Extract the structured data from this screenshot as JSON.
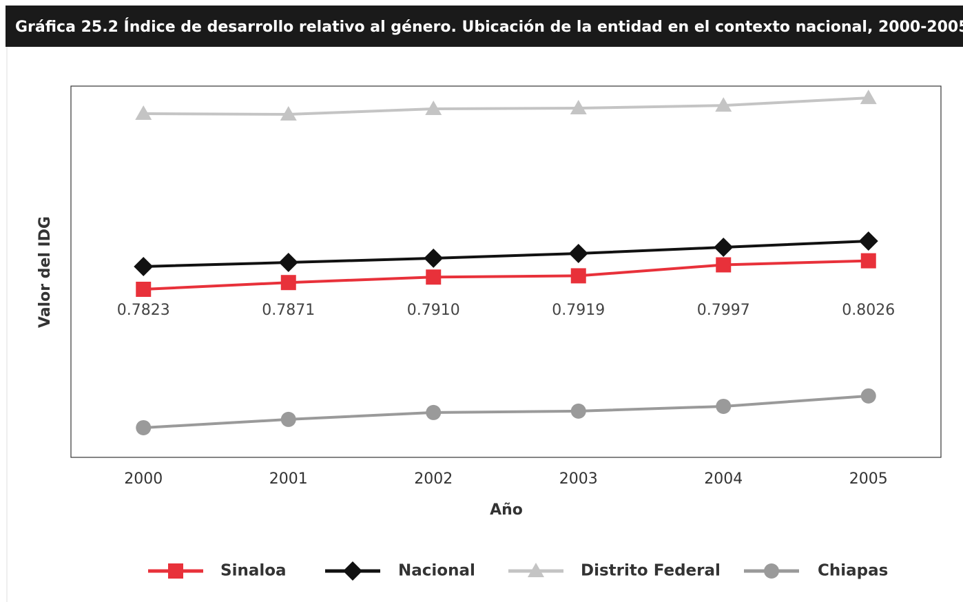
{
  "chart_data": {
    "type": "line",
    "title": "Gráfica 25.2  Índice de desarrollo relativo al género. Ubicación de la entidad en el contexto nacional, 2000-2005",
    "x_label": "Año",
    "y_label": "Valor del IDG",
    "categories": [
      "2000",
      "2001",
      "2002",
      "2003",
      "2004",
      "2005"
    ],
    "ylim": [
      0.6627,
      0.9269
    ],
    "series": [
      {
        "name": "Sinaloa",
        "color": "#e8313a",
        "marker": "square",
        "values": [
          0.7823,
          0.7871,
          0.791,
          0.7919,
          0.7997,
          0.8026
        ],
        "value_labels": [
          "0.7823",
          "0.7871",
          "0.7910",
          "0.7919",
          "0.7997",
          "0.8026"
        ]
      },
      {
        "name": "Nacional",
        "color": "#111111",
        "marker": "diamond",
        "values": [
          0.7985,
          0.8014,
          0.8044,
          0.8078,
          0.8122,
          0.8166
        ]
      },
      {
        "name": "Distrito Federal",
        "color": "#c4c4c4",
        "marker": "triangle",
        "values": [
          0.9073,
          0.9068,
          0.9107,
          0.9112,
          0.9131,
          0.9185
        ]
      },
      {
        "name": "Chiapas",
        "color": "#9a9a9a",
        "marker": "circle",
        "values": [
          0.6838,
          0.6897,
          0.6946,
          0.6956,
          0.699,
          0.7064
        ]
      }
    ]
  }
}
